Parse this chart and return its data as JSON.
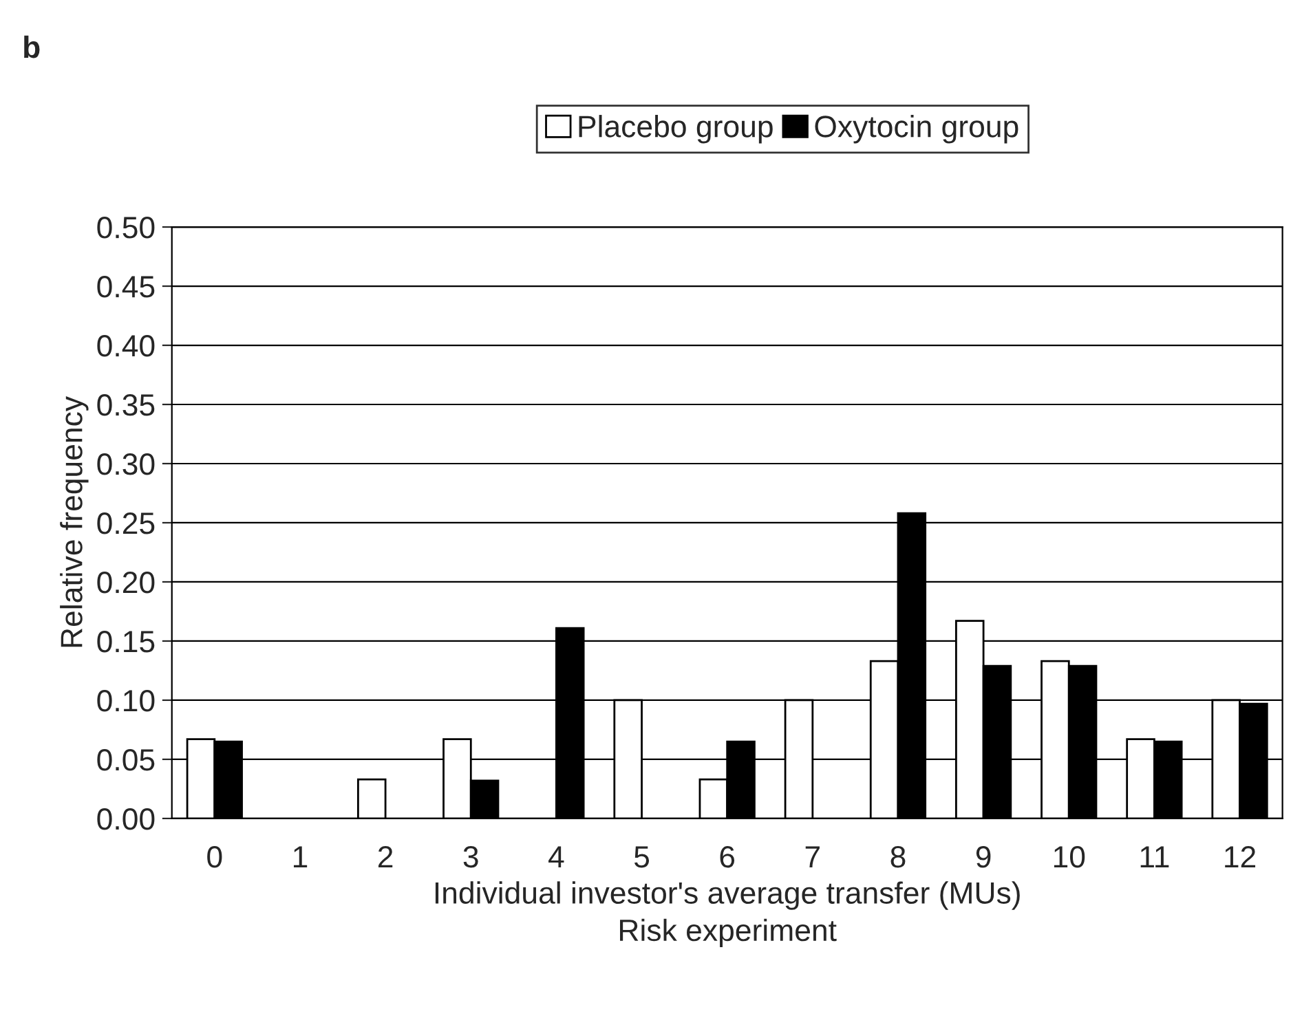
{
  "chart_data": {
    "type": "bar",
    "categories": [
      "0",
      "1",
      "2",
      "3",
      "4",
      "5",
      "6",
      "7",
      "8",
      "9",
      "10",
      "11",
      "12"
    ],
    "series": [
      {
        "name": "Placebo group",
        "color": "#ffffff",
        "values": [
          0.067,
          0,
          0.033,
          0.067,
          0,
          0.1,
          0.033,
          0.1,
          0.133,
          0.167,
          0.133,
          0.067,
          0.1
        ]
      },
      {
        "name": "Oxytocin group",
        "color": "#000000",
        "values": [
          0.065,
          0,
          0,
          0.032,
          0.161,
          0,
          0.065,
          0,
          0.258,
          0.129,
          0.129,
          0.065,
          0.097
        ]
      }
    ],
    "xlabel": "Individual investor's average transfer (MUs)\nRisk experiment",
    "ylabel": "Relative frequency",
    "ylim": [
      0,
      0.5
    ],
    "yticks": [
      {
        "value": 0,
        "label": "0.00"
      },
      {
        "value": 0.05,
        "label": "0.05"
      },
      {
        "value": 0.1,
        "label": "0.10"
      },
      {
        "value": 0.15,
        "label": "0.15"
      },
      {
        "value": 0.2,
        "label": "0.20"
      },
      {
        "value": 0.25,
        "label": "0.25"
      },
      {
        "value": 0.3,
        "label": "0.30"
      },
      {
        "value": 0.35,
        "label": "0.35"
      },
      {
        "value": 0.4,
        "label": "0.40"
      },
      {
        "value": 0.45,
        "label": "0.45"
      },
      {
        "value": 0.5,
        "label": "0.50"
      }
    ],
    "grid": "y",
    "legend": "top",
    "annotations": [
      "b"
    ]
  }
}
